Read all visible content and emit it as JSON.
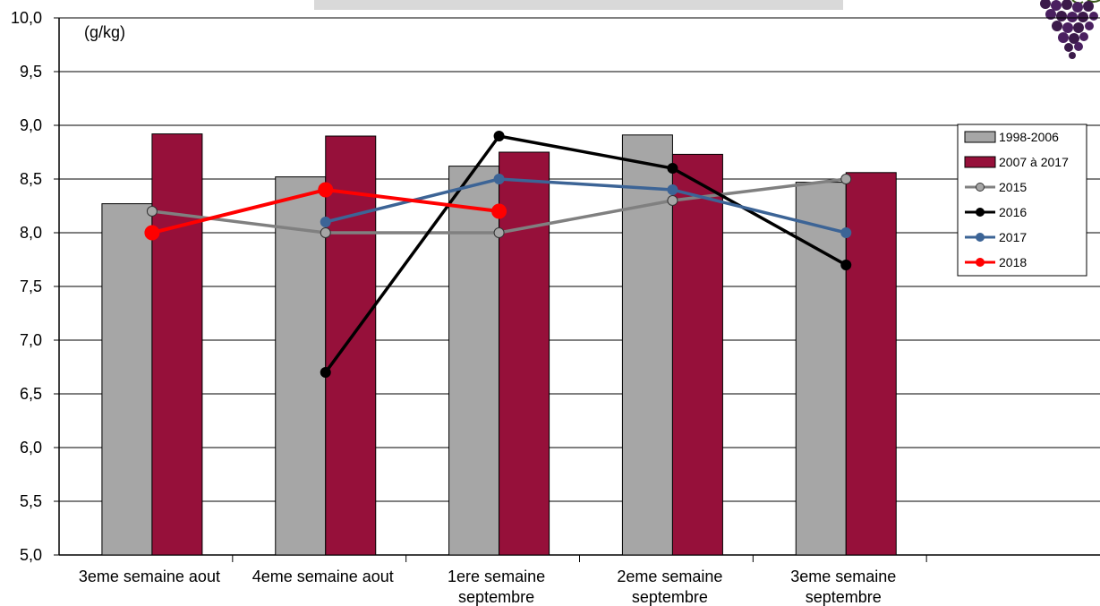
{
  "chart_data": {
    "type": "bar",
    "unit_label": "(g/kg)",
    "ylim": [
      5.0,
      10.0
    ],
    "yticks": [
      "5,0",
      "5,5",
      "6,0",
      "6,5",
      "7,0",
      "7,5",
      "8,0",
      "8,5",
      "9,0",
      "9,5",
      "10,0"
    ],
    "categories": [
      [
        "3eme semaine aout"
      ],
      [
        "4eme semaine aout"
      ],
      [
        "1ere semaine",
        "septembre"
      ],
      [
        "2eme semaine",
        "septembre"
      ],
      [
        "3eme semaine",
        "septembre"
      ],
      []
    ],
    "grid": true,
    "legend_position": "right",
    "bar_series": [
      {
        "name": "1998-2006",
        "color": "#a6a6a6",
        "values": [
          8.27,
          8.52,
          8.62,
          8.91,
          8.47,
          null
        ]
      },
      {
        "name": "2007 à 2017",
        "color": "#96103a",
        "values": [
          8.92,
          8.9,
          8.75,
          8.73,
          8.56,
          null
        ]
      }
    ],
    "line_series": [
      {
        "name": "2015",
        "color": "#808080",
        "marker_fill": "#a6a6a6",
        "values": [
          8.2,
          8.0,
          8.0,
          8.3,
          8.5,
          null
        ]
      },
      {
        "name": "2016",
        "color": "#000000",
        "marker_fill": "#000000",
        "values": [
          null,
          6.7,
          8.9,
          8.6,
          7.7,
          null
        ]
      },
      {
        "name": "2017",
        "color": "#3c6496",
        "marker_fill": "#3c6496",
        "values": [
          null,
          8.1,
          8.5,
          8.4,
          8.0,
          null
        ]
      },
      {
        "name": "2018",
        "color": "#ff0000",
        "marker_fill": "#ff0000",
        "values": [
          8.0,
          8.4,
          8.2,
          null,
          null,
          null
        ]
      }
    ]
  },
  "decor": {
    "grape_icon": "grape-cluster-icon",
    "title_bar": "empty-title-bar"
  }
}
